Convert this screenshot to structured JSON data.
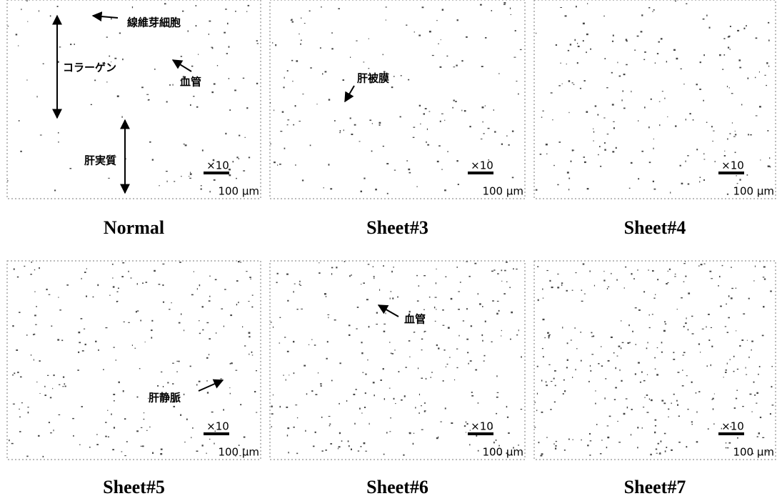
{
  "panels": [
    {
      "caption": "Normal",
      "magnification": "×10",
      "scale": "100 μm",
      "annotations": [
        "線維芽細胞",
        "コラーゲン",
        "血管",
        "肝実質"
      ]
    },
    {
      "caption": "Sheet#3",
      "magnification": "×10",
      "scale": "100 μm",
      "annotations": [
        "肝被膜"
      ]
    },
    {
      "caption": "Sheet#4",
      "magnification": "×10",
      "scale": "100 μm",
      "annotations": []
    },
    {
      "caption": "Sheet#5",
      "magnification": "×10",
      "scale": "100 μm",
      "annotations": [
        "肝静脈"
      ]
    },
    {
      "caption": "Sheet#6",
      "magnification": "×10",
      "scale": "100 μm",
      "annotations": [
        "血管"
      ]
    },
    {
      "caption": "Sheet#7",
      "magnification": "×10",
      "scale": "100 μm",
      "annotations": []
    }
  ]
}
